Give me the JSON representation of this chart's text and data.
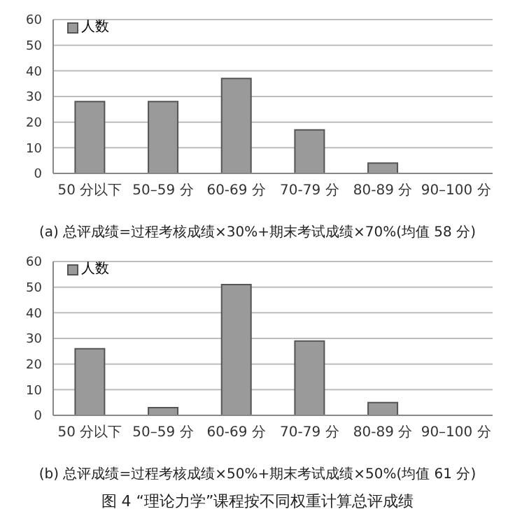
{
  "chart_data": [
    {
      "type": "bar",
      "categories": [
        "50 分以下",
        "50–59 分",
        "60-69 分",
        "70-79 分",
        "80-89 分",
        "90–100 分"
      ],
      "series": [
        {
          "name": "人数",
          "color": "#9a9a9a",
          "values": [
            28,
            28,
            37,
            17,
            4,
            0
          ]
        }
      ],
      "ylim": [
        0,
        60
      ],
      "yticks": [
        0,
        10,
        20,
        30,
        40,
        50,
        60
      ],
      "grid": "y",
      "legend": "top left",
      "annotations": [
        "(a) 总评成绩=过程考核成绩×30%+期末考试成绩×70%(均值 58 分)"
      ]
    },
    {
      "type": "bar",
      "categories": [
        "50 分以下",
        "50–59 分",
        "60-69 分",
        "70-79 分",
        "80-89 分",
        "90–100 分"
      ],
      "series": [
        {
          "name": "人数",
          "color": "#9a9a9a",
          "values": [
            26,
            3,
            51,
            29,
            5,
            0
          ]
        }
      ],
      "ylim": [
        0,
        60
      ],
      "yticks": [
        0,
        10,
        20,
        30,
        40,
        50,
        60
      ],
      "grid": "y",
      "legend": "top left",
      "annotations": [
        "(b) 总评成绩=过程考核成绩×50%+期末考试成绩×50%(均值 61 分)",
        "图 4 “理论力学”课程按不同权重计算总评成绩"
      ]
    }
  ]
}
